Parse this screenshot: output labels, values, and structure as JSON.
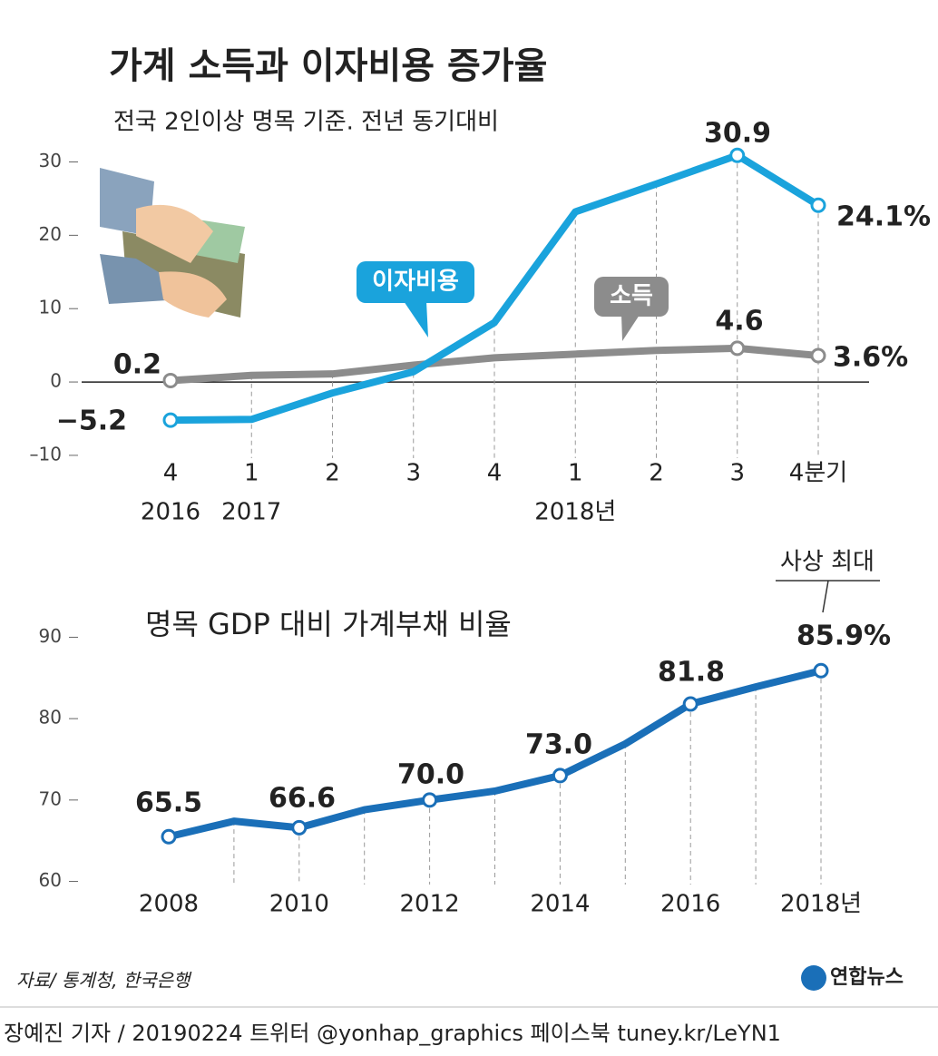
{
  "title": "가계 소득과 이자비용 증가율",
  "chart_data": [
    {
      "type": "line",
      "subtitle": "전국 2인이상 명목 기준. 전년 동기대비",
      "categories": [
        "4",
        "1",
        "2",
        "3",
        "4",
        "1",
        "2",
        "3",
        "4분기"
      ],
      "year_labels": [
        "2016",
        "2017",
        null,
        null,
        null,
        "2018년",
        null,
        null,
        null
      ],
      "series": [
        {
          "name": "이자비용",
          "color": "#1aa3dc",
          "values": [
            -5.2,
            -5.1,
            -1.5,
            1.4,
            8.1,
            23.2,
            27.0,
            30.9,
            24.1
          ],
          "value_labels": [
            "−5.2",
            null,
            null,
            null,
            null,
            null,
            null,
            "30.9",
            "24.1%"
          ]
        },
        {
          "name": "소득",
          "color": "#8c8c8c",
          "values": [
            0.2,
            0.9,
            1.1,
            2.3,
            3.3,
            3.8,
            4.3,
            4.6,
            3.6
          ],
          "value_labels": [
            "0.2",
            null,
            null,
            null,
            null,
            null,
            null,
            "4.6",
            "3.6%"
          ]
        }
      ],
      "ylim": [
        -11,
        36
      ],
      "yticks": [
        {
          "value": -10,
          "label": "–10"
        },
        0,
        10,
        20,
        30
      ]
    },
    {
      "type": "line",
      "title": "명목 GDP 대비 가계부채 비율",
      "annotation": "사상 최대",
      "categories": [
        "2008",
        null,
        "2010",
        null,
        "2012",
        null,
        "2014",
        null,
        "2016",
        null,
        "2018년"
      ],
      "series": [
        {
          "name": "가계부채 비율",
          "color": "#1a6fb8",
          "values": [
            65.5,
            67.4,
            66.6,
            68.8,
            70.0,
            71.1,
            73.0,
            76.9,
            81.8,
            83.9,
            85.9
          ],
          "value_labels": [
            "65.5",
            null,
            "66.6",
            null,
            "70.0",
            null,
            "73.0",
            null,
            "81.8",
            null,
            "85.9%"
          ]
        }
      ],
      "ylim": [
        58.5,
        92.5
      ],
      "yticks": [
        60,
        70,
        80,
        90
      ]
    }
  ],
  "source": "자료/ 통계청, 한국은행",
  "logo": "연합뉴스",
  "footer": "장예진 기자 / 20190224 트위터 @yonhap_graphics  페이스북 tuney.kr/LeYN1"
}
